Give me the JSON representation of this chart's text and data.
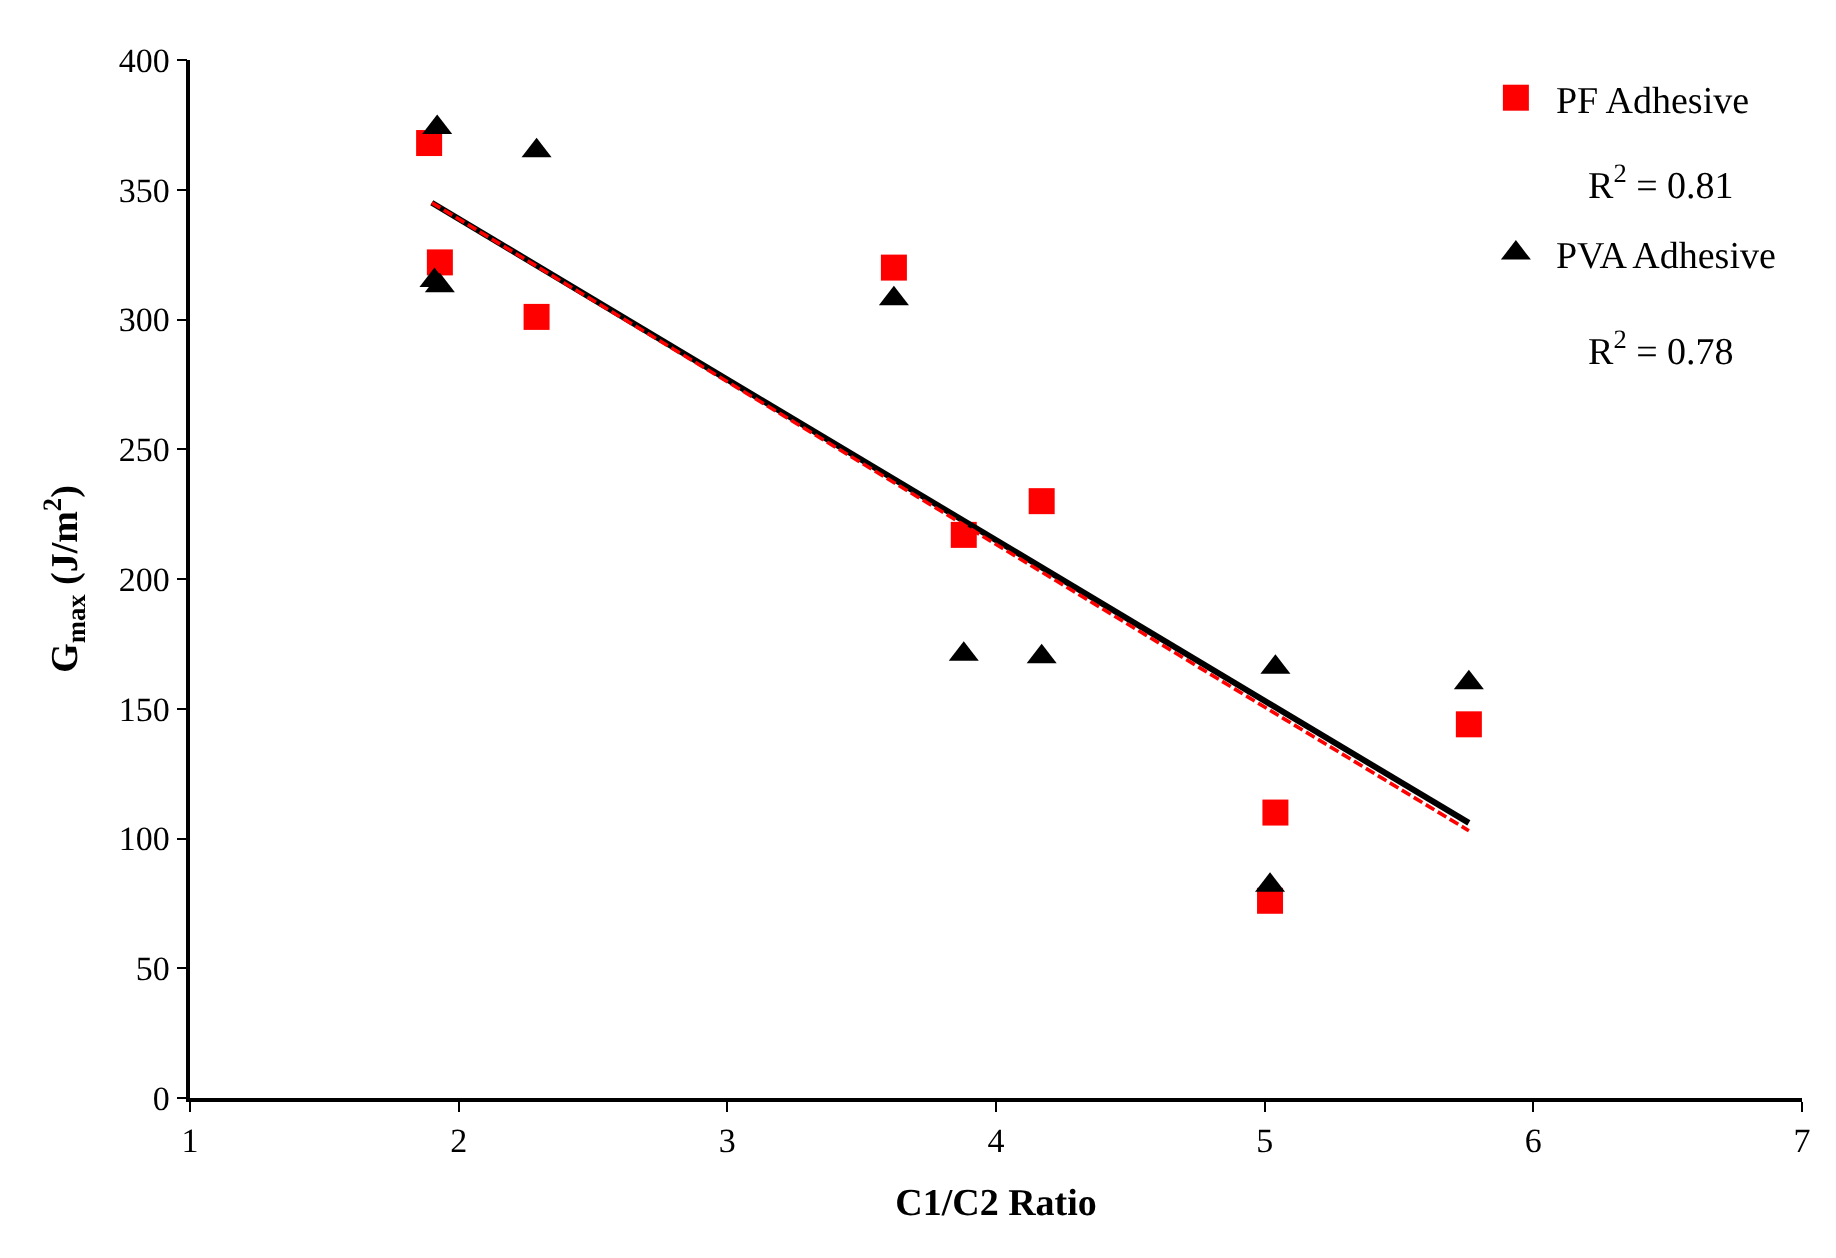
{
  "chart_data": {
    "type": "scatter",
    "xlabel": "C1/C2 Ratio",
    "ylabel": "G$_{max}$ (J/m$^{2}$)",
    "xlim": [
      1,
      7
    ],
    "xticks": [
      1,
      2,
      3,
      4,
      5,
      6,
      7
    ],
    "ylim": [
      0,
      400
    ],
    "yticks": [
      0,
      50,
      100,
      150,
      200,
      250,
      300,
      350,
      400
    ],
    "grid": false,
    "legend": "top right",
    "series": [
      {
        "name": "PF Adhesive",
        "color": "#ff0000",
        "marker": "square",
        "x": [
          1.89,
          1.93,
          2.29,
          3.62,
          3.88,
          4.17,
          5.02,
          5.04,
          5.76
        ],
        "values": [
          368,
          322,
          301,
          320,
          217,
          230,
          76,
          110,
          144
        ]
      },
      {
        "name": "PVA Adhesive",
        "color": "#000000",
        "marker": "triangle",
        "x": [
          1.92,
          1.91,
          1.93,
          2.29,
          3.62,
          3.88,
          4.17,
          5.02,
          5.04,
          5.76
        ],
        "values": [
          374,
          315,
          313,
          365,
          308,
          171,
          170,
          82,
          166,
          160
        ]
      },
      {
        "type": "line",
        "color": "#000000",
        "line_style": "solid",
        "marker": "none",
        "x": [
          1.9,
          5.76
        ],
        "values": [
          345,
          106
        ]
      },
      {
        "type": "line",
        "color": "#ff0000",
        "line_style": "dashed",
        "marker": "none",
        "x": [
          1.9,
          5.76
        ],
        "values": [
          345,
          103
        ]
      }
    ],
    "annotations": [
      "R$^{2}$ = 0.81",
      "R$^{2}$ = 0.78"
    ]
  }
}
